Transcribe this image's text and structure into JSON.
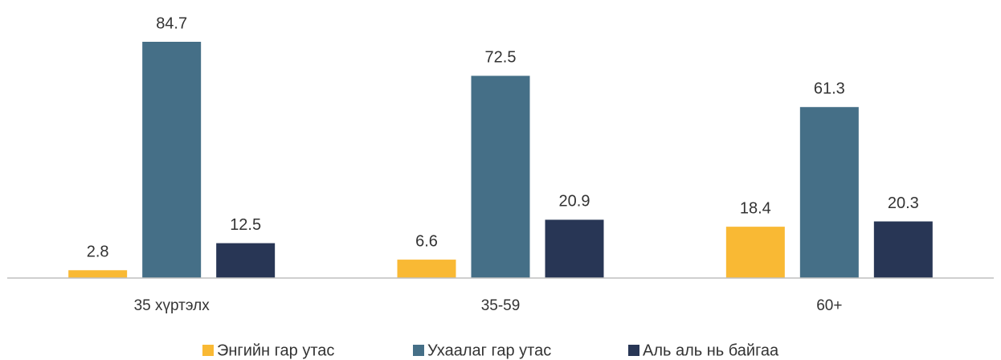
{
  "chart_data": {
    "type": "bar",
    "categories": [
      "35 хүртэлх",
      "35-59",
      "60+"
    ],
    "series": [
      {
        "name": "Энгийн гар утас",
        "color": "#f9b934",
        "values": [
          2.8,
          6.6,
          18.4
        ]
      },
      {
        "name": "Ухаалаг гар утас",
        "color": "#456f87",
        "values": [
          84.7,
          72.5,
          61.3
        ]
      },
      {
        "name": "Аль аль нь байгаа",
        "color": "#283655",
        "values": [
          12.5,
          20.9,
          20.3
        ]
      }
    ],
    "legend": "bottom"
  }
}
